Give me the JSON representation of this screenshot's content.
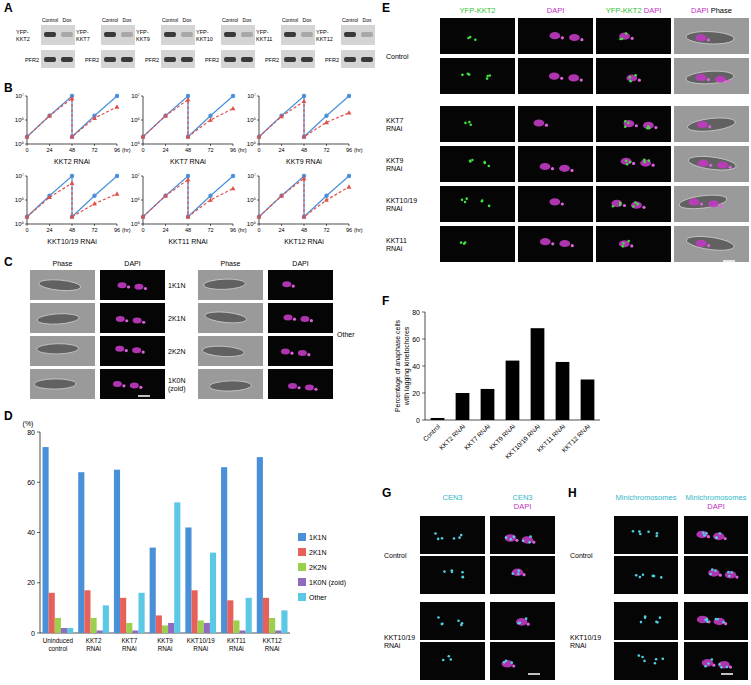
{
  "panel_labels": [
    "A",
    "B",
    "C",
    "D",
    "E",
    "F",
    "G",
    "H"
  ],
  "blots": {
    "lanes": [
      "Control",
      "Dox"
    ],
    "loading_control": "PFR2",
    "targets": [
      "YFP-KKT2",
      "YFP-KKT7",
      "YFP-KKT9",
      "YFP-KKT10",
      "YFP-KKT11",
      "YFP-KKT12"
    ]
  },
  "chart_data": [
    {
      "type": "line",
      "title": "KKT2 RNAi",
      "xlabel": "(hr)",
      "log": "y",
      "x": [
        0,
        24,
        48,
        48,
        72,
        96
      ],
      "xlim": [
        0,
        96
      ],
      "xticks": [
        0,
        24,
        48,
        72,
        96
      ],
      "ylim": [
        100000,
        10000000
      ],
      "yticks": [
        {
          "value": 100000,
          "label": "10⁵"
        },
        {
          "value": 1000000,
          "label": "10⁶"
        },
        {
          "value": 10000000,
          "label": "10⁷"
        }
      ],
      "series": [
        {
          "color": "#4a90d9",
          "marker": "circle",
          "line_style": "solid",
          "values": [
            200000,
            1500000,
            10000000,
            200000,
            1500000,
            10000000
          ]
        },
        {
          "color": "#e0504a",
          "marker": "triangle",
          "line_style": "dashed",
          "values": [
            200000,
            1500000,
            8000000,
            200000,
            1200000,
            3500000
          ]
        }
      ]
    },
    {
      "type": "line",
      "title": "KKT7 RNAi",
      "xlabel": "(hr)",
      "log": "y",
      "x": [
        0,
        24,
        48,
        48,
        72,
        96
      ],
      "xlim": [
        0,
        96
      ],
      "xticks": [
        0,
        24,
        48,
        72,
        96
      ],
      "ylim": [
        100000,
        10000000
      ],
      "yticks": [
        {
          "value": 100000,
          "label": "10⁵"
        },
        {
          "value": 1000000,
          "label": "10⁶"
        },
        {
          "value": 10000000,
          "label": "10⁷"
        }
      ],
      "series": [
        {
          "color": "#4a90d9",
          "marker": "circle",
          "line_style": "solid",
          "values": [
            200000,
            1500000,
            10000000,
            200000,
            1500000,
            10000000
          ]
        },
        {
          "color": "#e0504a",
          "marker": "triangle",
          "line_style": "dashed",
          "values": [
            200000,
            1500000,
            7000000,
            200000,
            1000000,
            3000000
          ]
        }
      ]
    },
    {
      "type": "line",
      "title": "KKT9 RNAi",
      "xlabel": "(hr)",
      "log": "y",
      "x": [
        0,
        24,
        48,
        48,
        72,
        96
      ],
      "xlim": [
        0,
        96
      ],
      "xticks": [
        0,
        24,
        48,
        72,
        96
      ],
      "ylim": [
        100000,
        10000000
      ],
      "yticks": [
        {
          "value": 100000,
          "label": "10⁵"
        },
        {
          "value": 1000000,
          "label": "10⁶"
        },
        {
          "value": 10000000,
          "label": "10⁷"
        }
      ],
      "series": [
        {
          "color": "#4a90d9",
          "marker": "circle",
          "line_style": "solid",
          "values": [
            200000,
            1500000,
            10000000,
            200000,
            1500000,
            10000000
          ]
        },
        {
          "color": "#e0504a",
          "marker": "triangle",
          "line_style": "dashed",
          "values": [
            200000,
            1400000,
            6000000,
            200000,
            800000,
            2000000
          ]
        }
      ]
    },
    {
      "type": "line",
      "title": "KKT10/19 RNAi",
      "xlabel": "(hr)",
      "log": "y",
      "x": [
        0,
        24,
        48,
        48,
        72,
        96
      ],
      "xlim": [
        0,
        96
      ],
      "xticks": [
        0,
        24,
        48,
        72,
        96
      ],
      "ylim": [
        100000,
        10000000
      ],
      "yticks": [
        {
          "value": 100000,
          "label": "10⁵"
        },
        {
          "value": 1000000,
          "label": "10⁶"
        },
        {
          "value": 10000000,
          "label": "10⁷"
        }
      ],
      "series": [
        {
          "color": "#4a90d9",
          "marker": "circle",
          "line_style": "solid",
          "values": [
            200000,
            1500000,
            10000000,
            200000,
            1500000,
            10000000
          ]
        },
        {
          "color": "#e0504a",
          "marker": "triangle",
          "line_style": "dashed",
          "values": [
            200000,
            1300000,
            5000000,
            200000,
            700000,
            1800000
          ]
        }
      ]
    },
    {
      "type": "line",
      "title": "KKT11 RNAi",
      "xlabel": "(hr)",
      "log": "y",
      "x": [
        0,
        24,
        48,
        48,
        72,
        96
      ],
      "xlim": [
        0,
        96
      ],
      "xticks": [
        0,
        24,
        48,
        72,
        96
      ],
      "ylim": [
        100000,
        10000000
      ],
      "yticks": [
        {
          "value": 100000,
          "label": "10⁵"
        },
        {
          "value": 1000000,
          "label": "10⁶"
        },
        {
          "value": 10000000,
          "label": "10⁷"
        }
      ],
      "series": [
        {
          "color": "#4a90d9",
          "marker": "circle",
          "line_style": "solid",
          "values": [
            200000,
            1500000,
            10000000,
            200000,
            1500000,
            10000000
          ]
        },
        {
          "color": "#e0504a",
          "marker": "triangle",
          "line_style": "dashed",
          "values": [
            200000,
            1500000,
            7000000,
            200000,
            1000000,
            3000000
          ]
        }
      ]
    },
    {
      "type": "line",
      "title": "KKT12 RNAi",
      "xlabel": "(hr)",
      "log": "y",
      "x": [
        0,
        24,
        48,
        48,
        72,
        96
      ],
      "xlim": [
        0,
        96
      ],
      "xticks": [
        0,
        24,
        48,
        72,
        96
      ],
      "ylim": [
        100000,
        10000000
      ],
      "yticks": [
        {
          "value": 100000,
          "label": "10⁵"
        },
        {
          "value": 1000000,
          "label": "10⁶"
        },
        {
          "value": 10000000,
          "label": "10⁷"
        }
      ],
      "series": [
        {
          "color": "#4a90d9",
          "marker": "circle",
          "line_style": "solid",
          "values": [
            200000,
            1500000,
            10000000,
            200000,
            1500000,
            10000000
          ]
        },
        {
          "color": "#e0504a",
          "marker": "triangle",
          "line_style": "dashed",
          "values": [
            200000,
            1500000,
            8000000,
            200000,
            1000000,
            3500000
          ]
        }
      ]
    },
    {
      "type": "bar",
      "ylabel": "(%)",
      "categories": [
        "Uninduced control",
        "KKT2 RNAi",
        "KKT7 RNAi",
        "KKT9 RNAi",
        "KKT10/19 RNAi",
        "KKT11 RNAi",
        "KKT12 RNAi"
      ],
      "ylim": [
        0,
        80
      ],
      "yticks": [
        0,
        20,
        40,
        60,
        80
      ],
      "legend": "right",
      "series": [
        {
          "name": "1K1N",
          "color": "#4a90d9",
          "values": [
            74,
            64,
            65,
            34,
            42,
            66,
            70
          ]
        },
        {
          "name": "2K1N",
          "color": "#e8605a",
          "values": [
            16,
            17,
            14,
            7,
            17,
            13,
            14
          ]
        },
        {
          "name": "2K2N",
          "color": "#9ccf4e",
          "values": [
            6,
            6,
            4,
            3,
            5,
            5,
            6
          ]
        },
        {
          "name": "1K0N (zoid)",
          "color": "#8e6bbf",
          "values": [
            2,
            1,
            1,
            4,
            4,
            1,
            1
          ]
        },
        {
          "name": "Other",
          "color": "#5bc8e6",
          "values": [
            2,
            11,
            16,
            52,
            32,
            14,
            9
          ]
        }
      ]
    },
    {
      "type": "bar",
      "ylabel": "Percentage of anaphase cells with lagging kinetochores",
      "categories": [
        "Control",
        "KKT2 RNAi",
        "KKT7 RNAi",
        "KKT9 RNAi",
        "KKT10/19 RNAi",
        "KKT11 RNAi",
        "KKT12 RNAi"
      ],
      "values": [
        1.5,
        20,
        23,
        44,
        68,
        43,
        30
      ],
      "color": "#000000",
      "ylim": [
        0,
        80
      ],
      "yticks": [
        0,
        20,
        40,
        60,
        80
      ]
    }
  ],
  "micrographs_c": {
    "columns": [
      "Phase",
      "DAPI"
    ],
    "left_rows": [
      "1K1N",
      "2K1N",
      "2K2N",
      "1K0N (zoid)"
    ],
    "right_label": "Other"
  },
  "micrographs_e": {
    "columns": [
      [
        {
          "text": "YFP-KKT2",
          "color": "#2fbf2f"
        }
      ],
      [
        {
          "text": "DAPI",
          "color": "#c02fc0"
        }
      ],
      [
        {
          "text": "YFP-KKT2",
          "color": "#2fbf2f"
        },
        {
          "text": "DAPI",
          "color": "#c02fc0"
        }
      ],
      [
        {
          "text": "DAPI",
          "color": "#c02fc0"
        },
        {
          "text": "Phase",
          "color": "#000000"
        }
      ]
    ],
    "rows": [
      "Control",
      null,
      "KKT7 RNAi",
      "KKT9 RNAi",
      "KKT10/19 RNAi",
      "KKT11 RNAi"
    ]
  },
  "micrographs_g": {
    "columns": [
      [
        {
          "text": "CEN3",
          "color": "#2fb7c8"
        }
      ],
      [
        {
          "text": "CEN3",
          "color": "#2fb7c8"
        },
        {
          "text": "DAPI",
          "color": "#c02fc0"
        }
      ]
    ],
    "rows": [
      "Control",
      null,
      "KKT10/19 RNAi",
      null
    ]
  },
  "micrographs_h": {
    "columns": [
      [
        {
          "text": "Minichromosomes",
          "color": "#2fb7c8"
        }
      ],
      [
        {
          "text": "Minichromosomes",
          "color": "#2fb7c8"
        },
        {
          "text": "DAPI",
          "color": "#c02fc0"
        }
      ]
    ],
    "rows": [
      "Control",
      null,
      "KKT10/19 RNAi",
      null
    ]
  }
}
